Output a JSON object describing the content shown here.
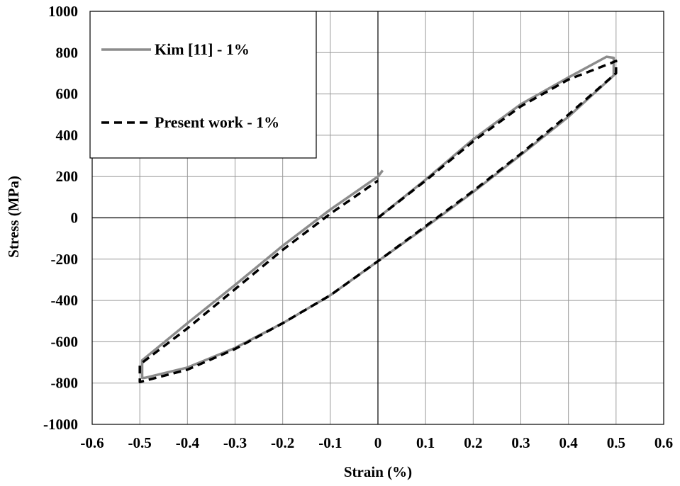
{
  "chart_data": {
    "type": "line",
    "xlabel": "Strain (%)",
    "ylabel": "Stress (MPa)",
    "xlim": [
      -0.6,
      0.6
    ],
    "ylim": [
      -1000,
      1000
    ],
    "x_ticks": [
      -0.6,
      -0.5,
      -0.4,
      -0.3,
      -0.2,
      -0.1,
      0,
      0.1,
      0.2,
      0.3,
      0.4,
      0.5,
      0.6
    ],
    "x_tick_labels": [
      "-0.6",
      "-0.5",
      "-0.4",
      "-0.3",
      "-0.2",
      "-0.1",
      "0",
      "0.1",
      "0.2",
      "0.3",
      "0.4",
      "0.5",
      "0.6"
    ],
    "y_ticks": [
      -1000,
      -800,
      -600,
      -400,
      -200,
      0,
      200,
      400,
      600,
      800,
      1000
    ],
    "y_tick_labels": [
      "-1000",
      "-800",
      "-600",
      "-400",
      "-200",
      "0",
      "200",
      "400",
      "600",
      "800",
      "1000"
    ],
    "grid": true,
    "legend_position": "top-left",
    "series": [
      {
        "name": "Kim [11] - 1%",
        "color": "#8c8c8c",
        "style": "solid",
        "x": [
          0,
          0.1,
          0.2,
          0.3,
          0.4,
          0.48,
          0.495,
          0.495,
          0.4,
          0.3,
          0.2,
          0.1,
          0,
          -0.1,
          -0.2,
          -0.3,
          -0.4,
          -0.49,
          -0.495,
          -0.495,
          -0.4,
          -0.3,
          -0.2,
          -0.1,
          0,
          0.01
        ],
        "y": [
          0,
          185,
          380,
          550,
          680,
          780,
          775,
          690,
          490,
          305,
          125,
          -45,
          -210,
          -375,
          -510,
          -630,
          -725,
          -775,
          -775,
          -690,
          -510,
          -325,
          -135,
          40,
          200,
          230
        ]
      },
      {
        "name": "Present work - 1%",
        "color": "#000000",
        "style": "dashed",
        "x": [
          0,
          0.1,
          0.2,
          0.3,
          0.4,
          0.49,
          0.5,
          0.5,
          0.4,
          0.3,
          0.2,
          0.1,
          0,
          -0.1,
          -0.2,
          -0.3,
          -0.4,
          -0.5,
          -0.5,
          -0.5,
          -0.4,
          -0.3,
          -0.2,
          -0.1,
          0
        ],
        "y": [
          0,
          180,
          370,
          540,
          670,
          750,
          760,
          700,
          500,
          310,
          130,
          -40,
          -210,
          -375,
          -510,
          -635,
          -735,
          -795,
          -755,
          -710,
          -535,
          -345,
          -155,
          20,
          180
        ]
      }
    ]
  }
}
